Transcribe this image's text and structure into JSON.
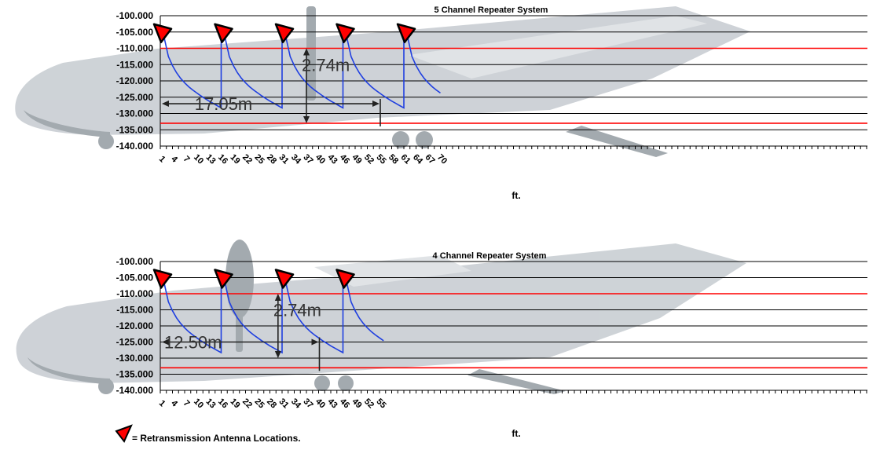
{
  "chart_data": [
    {
      "type": "line",
      "title": "5 Channel Repeater System",
      "xlabel": "ft.",
      "ylabel": "",
      "ylim": [
        -140,
        -100
      ],
      "y_ticks": [
        "-100.000",
        "-105.000",
        "-110.000",
        "-115.000",
        "-120.000",
        "-125.000",
        "-130.000",
        "-135.000",
        "-140.000"
      ],
      "x_ticks": [
        "1",
        "4",
        "7",
        "10",
        "13",
        "16",
        "19",
        "22",
        "25",
        "28",
        "31",
        "34",
        "37",
        "40",
        "43",
        "46",
        "49",
        "52",
        "55",
        "58",
        "61",
        "64",
        "67",
        "70"
      ],
      "x_range": [
        1,
        70
      ],
      "reference_lines": [
        -110,
        -133
      ],
      "series": [
        {
          "x": [
            1,
            2,
            3,
            4,
            5,
            6,
            7,
            8,
            9,
            10,
            11,
            12,
            13,
            14,
            15,
            16,
            16,
            17,
            18,
            19,
            20,
            21,
            22,
            23,
            24,
            25,
            26,
            27,
            28,
            29,
            30,
            31,
            31,
            32,
            33,
            34,
            35,
            36,
            37,
            38,
            39,
            40,
            41,
            42,
            43,
            44,
            45,
            46,
            46,
            47,
            48,
            49,
            50,
            51,
            52,
            53,
            54,
            55,
            56,
            57,
            58,
            59,
            60,
            61,
            61,
            62,
            63,
            64,
            65,
            66,
            67,
            68,
            69,
            70
          ],
          "y": [
            -105,
            -107,
            -112.5,
            -115.3,
            -117.5,
            -119.2,
            -120.6,
            -121.8,
            -122.8,
            -123.7,
            -124.6,
            -125.4,
            -126.2,
            -126.9,
            -127.6,
            -128.3,
            -105,
            -107,
            -112.5,
            -115.3,
            -117.5,
            -119.2,
            -120.6,
            -121.8,
            -122.8,
            -123.7,
            -124.6,
            -125.4,
            -126.2,
            -126.9,
            -127.6,
            -128.3,
            -105,
            -107,
            -112.5,
            -115.3,
            -117.5,
            -119.2,
            -120.6,
            -121.8,
            -122.8,
            -123.7,
            -124.6,
            -125.4,
            -126.2,
            -126.9,
            -127.6,
            -128.3,
            -105,
            -107,
            -112.5,
            -115.3,
            -117.5,
            -119.2,
            -120.6,
            -121.8,
            -122.8,
            -123.7,
            -124.6,
            -125.4,
            -126.2,
            -126.9,
            -127.6,
            -128.3,
            -105,
            -107,
            -112.5,
            -115.3,
            -117.5,
            -119.2,
            -120.6,
            -121.8,
            -122.8,
            -123.7
          ]
        }
      ],
      "antenna_x": [
        1,
        16,
        31,
        46,
        61
      ],
      "annotations": [
        {
          "text": "17.05m",
          "kind": "horizontal-span",
          "x_from": 1,
          "x_to": 55,
          "y": -127
        },
        {
          "text": "2.74m",
          "kind": "vertical-span",
          "x": 37,
          "y_from": -110,
          "y_to": -133
        }
      ]
    },
    {
      "type": "line",
      "title": "4 Channel Repeater System",
      "xlabel": "ft.",
      "ylabel": "",
      "ylim": [
        -140,
        -100
      ],
      "y_ticks": [
        "-100.000",
        "-105.000",
        "-110.000",
        "-115.000",
        "-120.000",
        "-125.000",
        "-130.000",
        "-135.000",
        "-140.000"
      ],
      "x_ticks": [
        "1",
        "4",
        "7",
        "10",
        "13",
        "16",
        "19",
        "22",
        "25",
        "28",
        "31",
        "34",
        "37",
        "40",
        "43",
        "46",
        "49",
        "52",
        "55"
      ],
      "x_range": [
        1,
        70
      ],
      "reference_lines": [
        -110,
        -133
      ],
      "series": [
        {
          "x": [
            1,
            2,
            3,
            4,
            5,
            6,
            7,
            8,
            9,
            10,
            11,
            12,
            13,
            14,
            15,
            16,
            16,
            17,
            18,
            19,
            20,
            21,
            22,
            23,
            24,
            25,
            26,
            27,
            28,
            29,
            30,
            31,
            31,
            32,
            33,
            34,
            35,
            36,
            37,
            38,
            39,
            40,
            41,
            42,
            43,
            44,
            45,
            46,
            46,
            47,
            48,
            49,
            50,
            51,
            52,
            53,
            54,
            55,
            56
          ],
          "y": [
            -105,
            -107,
            -112.5,
            -115.3,
            -117.5,
            -119.2,
            -120.6,
            -121.8,
            -122.8,
            -123.7,
            -124.6,
            -125.4,
            -126.2,
            -126.9,
            -127.6,
            -128.3,
            -105,
            -107,
            -112.5,
            -115.3,
            -117.5,
            -119.2,
            -120.6,
            -121.8,
            -122.8,
            -123.7,
            -124.6,
            -125.4,
            -126.2,
            -126.9,
            -127.6,
            -128.3,
            -105,
            -107,
            -112.5,
            -115.3,
            -117.5,
            -119.2,
            -120.6,
            -121.8,
            -122.8,
            -123.7,
            -124.6,
            -125.4,
            -126.2,
            -126.9,
            -127.6,
            -128.3,
            -105,
            -107,
            -112.5,
            -115.3,
            -117.5,
            -119.2,
            -120.6,
            -121.8,
            -122.8,
            -123.7,
            -124.6
          ]
        }
      ],
      "antenna_x": [
        1,
        16,
        31,
        46
      ],
      "annotations": [
        {
          "text": "12.50m",
          "kind": "horizontal-span",
          "x_from": 1,
          "x_to": 40,
          "y": -125
        },
        {
          "text": "2.74m",
          "kind": "vertical-span",
          "x": 30,
          "y_from": -110,
          "y_to": -130
        }
      ]
    }
  ],
  "legend": {
    "marker": "red-triangle",
    "text": "= Retransmission Antenna Locations."
  },
  "colors": {
    "signal": "#1f3fe0",
    "reference": "#ff0000",
    "marker_fill": "#ff0000"
  }
}
